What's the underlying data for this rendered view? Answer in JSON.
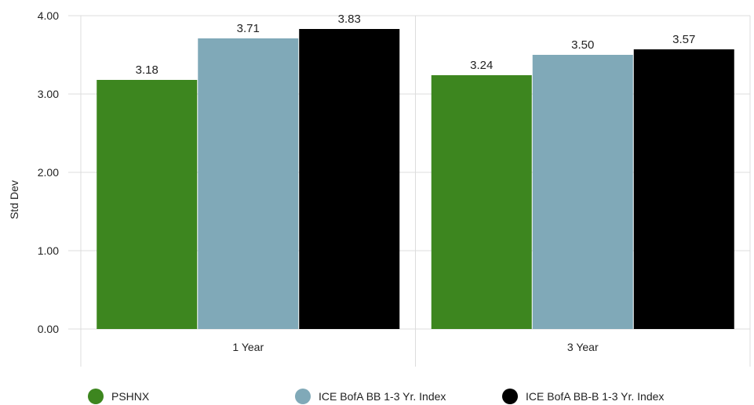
{
  "chart_data": {
    "type": "bar",
    "categories": [
      "1 Year",
      "3 Year"
    ],
    "series": [
      {
        "name": "PSHNX",
        "values": [
          3.18,
          3.24
        ],
        "color": "#3d861f"
      },
      {
        "name": "ICE BofA BB 1-3 Yr. Index",
        "values": [
          3.71,
          3.5
        ],
        "color": "#80a9b8"
      },
      {
        "name": "ICE BofA BB-B 1-3 Yr. Index",
        "values": [
          3.83,
          3.57
        ],
        "color": "#000000"
      }
    ],
    "ylabel": "Std Dev",
    "xlabel": "",
    "ylim": [
      0,
      4
    ],
    "yticks": [
      "0.00",
      "1.00",
      "2.00",
      "3.00",
      "4.00"
    ],
    "value_labels": [
      [
        "3.18",
        "3.24"
      ],
      [
        "3.71",
        "3.50"
      ],
      [
        "3.83",
        "3.57"
      ]
    ],
    "grid": true,
    "legend": "bottom"
  }
}
